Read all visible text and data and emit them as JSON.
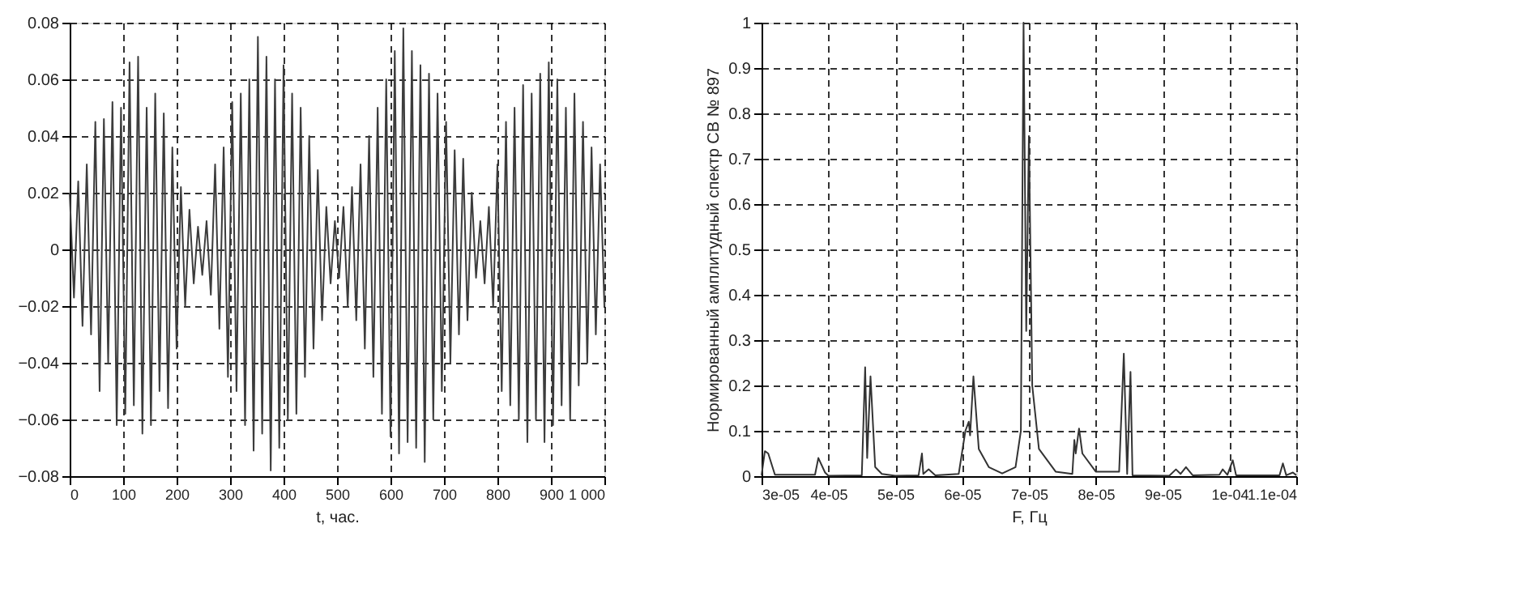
{
  "chart_data": [
    {
      "type": "line",
      "xlabel": "t, час.",
      "xlim": [
        0,
        1000
      ],
      "ylim": [
        -0.08,
        0.08
      ],
      "xticks": [
        0,
        100,
        200,
        300,
        400,
        500,
        600,
        700,
        800,
        900,
        {
          "value": 1000,
          "label": "1 000"
        }
      ],
      "yticks": [
        -0.08,
        -0.06,
        -0.04,
        -0.02,
        0,
        0.02,
        0.04,
        0.06,
        0.08
      ],
      "grid": true,
      "marker": "none",
      "line_style": "solid",
      "x": [
        0,
        8,
        16,
        24,
        32,
        40,
        48,
        56,
        64,
        72,
        80,
        88,
        96,
        104,
        112,
        120,
        128,
        136,
        144,
        152,
        160,
        168,
        176,
        184,
        192,
        200,
        208,
        216,
        224,
        232,
        240,
        248,
        256,
        264,
        272,
        280,
        288,
        296,
        304,
        312,
        320,
        328,
        336,
        344,
        352,
        360,
        368,
        376,
        384,
        392,
        400,
        408,
        416,
        424,
        432,
        440,
        448,
        456,
        464,
        472,
        480,
        488,
        496,
        504,
        512,
        520,
        528,
        536,
        544,
        552,
        560,
        568,
        576,
        584,
        592,
        600,
        608,
        616,
        624,
        632,
        640,
        648,
        656,
        664,
        672,
        680,
        688,
        696,
        704,
        712,
        720,
        728,
        736,
        744,
        752,
        760,
        768,
        776,
        784,
        792,
        800,
        808,
        816,
        824,
        832,
        840,
        848,
        856,
        864,
        872,
        880,
        888,
        896,
        904,
        912,
        920,
        928,
        936,
        944,
        952,
        960,
        968,
        976,
        984,
        992,
        1000
      ],
      "series": [
        {
          "color": "#3c3c3c",
          "values": [
            0.02,
            -0.017,
            0.024,
            -0.027,
            0.03,
            -0.03,
            0.045,
            -0.05,
            0.046,
            -0.04,
            0.052,
            -0.062,
            0.05,
            -0.058,
            0.066,
            -0.055,
            0.068,
            -0.065,
            0.05,
            -0.062,
            0.055,
            -0.05,
            0.048,
            -0.056,
            0.036,
            -0.035,
            0.022,
            -0.02,
            0.014,
            -0.012,
            0.008,
            -0.009,
            0.01,
            -0.016,
            0.03,
            -0.028,
            0.036,
            -0.045,
            0.052,
            -0.05,
            0.055,
            -0.062,
            0.06,
            -0.071,
            0.075,
            -0.065,
            0.068,
            -0.078,
            0.06,
            -0.07,
            0.065,
            -0.06,
            0.055,
            -0.058,
            0.05,
            -0.045,
            0.04,
            -0.035,
            0.028,
            -0.025,
            0.015,
            -0.012,
            0.01,
            -0.01,
            0.015,
            -0.02,
            0.022,
            -0.025,
            0.03,
            -0.035,
            0.04,
            -0.045,
            0.05,
            -0.058,
            0.06,
            -0.066,
            0.07,
            -0.072,
            0.078,
            -0.068,
            0.07,
            -0.07,
            0.065,
            -0.075,
            0.062,
            -0.06,
            0.055,
            -0.05,
            0.045,
            -0.04,
            0.035,
            -0.03,
            0.032,
            -0.025,
            0.02,
            -0.01,
            0.01,
            -0.012,
            0.015,
            -0.02,
            0.03,
            -0.05,
            0.045,
            -0.055,
            0.05,
            -0.06,
            0.058,
            -0.068,
            0.055,
            -0.06,
            0.062,
            -0.068,
            0.066,
            -0.062,
            0.06,
            -0.055,
            0.05,
            -0.06,
            0.055,
            -0.048,
            0.045,
            -0.04,
            0.036,
            -0.03,
            0.03,
            -0.02
          ]
        }
      ]
    },
    {
      "type": "line",
      "xlabel": "F, Гц",
      "ylabel": "Нормированный амплитудный спектр СВ № 897",
      "xlim": [
        3e-05,
        0.00011
      ],
      "ylim": [
        0,
        1
      ],
      "xticks": [
        {
          "value": 3e-05,
          "label": "3e-05"
        },
        {
          "value": 4e-05,
          "label": "4e-05"
        },
        {
          "value": 5e-05,
          "label": "5e-05"
        },
        {
          "value": 6e-05,
          "label": "6e-05"
        },
        {
          "value": 7e-05,
          "label": "7e-05"
        },
        {
          "value": 8e-05,
          "label": "8e-05"
        },
        {
          "value": 9e-05,
          "label": "9e-05"
        },
        {
          "value": 0.0001,
          "label": "1e-04"
        },
        {
          "value": 0.00011,
          "label": "1.1e-04"
        }
      ],
      "yticks": [
        0,
        0.1,
        0.2,
        0.3,
        0.4,
        0.5,
        0.6,
        0.7,
        0.8,
        0.9,
        1
      ],
      "grid": true,
      "marker": "none",
      "line_style": "solid",
      "x": [
        3e-05,
        3.05e-05,
        3.1e-05,
        3.2e-05,
        3.8e-05,
        3.85e-05,
        3.95e-05,
        4e-05,
        4.5e-05,
        4.55e-05,
        4.58e-05,
        4.63e-05,
        4.7e-05,
        4.8e-05,
        5e-05,
        5.35e-05,
        5.4e-05,
        5.42e-05,
        5.5e-05,
        5.6e-05,
        5.95e-05,
        6.05e-05,
        6.1e-05,
        6.12e-05,
        6.17e-05,
        6.25e-05,
        6.4e-05,
        6.6e-05,
        6.8e-05,
        6.88e-05,
        6.92e-05,
        6.96e-05,
        7e-05,
        7.05e-05,
        7.15e-05,
        7.4e-05,
        7.65e-05,
        7.68e-05,
        7.7e-05,
        7.75e-05,
        7.8e-05,
        8e-05,
        8.35e-05,
        8.42e-05,
        8.47e-05,
        8.52e-05,
        8.55e-05,
        9.1e-05,
        9.2e-05,
        9.27e-05,
        9.35e-05,
        9.45e-05,
        9.85e-05,
        9.9e-05,
        9.97e-05,
        0.0001005,
        0.000101,
        0.0001075,
        0.000108,
        0.0001085,
        0.0001095,
        0.00011
      ],
      "series": [
        {
          "color": "#333333",
          "values": [
            0.002,
            0.055,
            0.05,
            0.003,
            0.003,
            0.04,
            0.008,
            0.001,
            0.002,
            0.24,
            0.04,
            0.22,
            0.02,
            0.005,
            0.001,
            0.002,
            0.05,
            0.005,
            0.015,
            0.002,
            0.005,
            0.1,
            0.12,
            0.09,
            0.22,
            0.06,
            0.02,
            0.006,
            0.02,
            0.1,
            1.0,
            0.32,
            0.75,
            0.2,
            0.06,
            0.01,
            0.005,
            0.08,
            0.05,
            0.105,
            0.05,
            0.01,
            0.01,
            0.27,
            0.005,
            0.23,
            0.002,
            0.001,
            0.015,
            0.005,
            0.02,
            0.002,
            0.003,
            0.015,
            0.003,
            0.035,
            0.002,
            0.002,
            0.028,
            0.002,
            0.008,
            0.002
          ]
        }
      ]
    }
  ]
}
